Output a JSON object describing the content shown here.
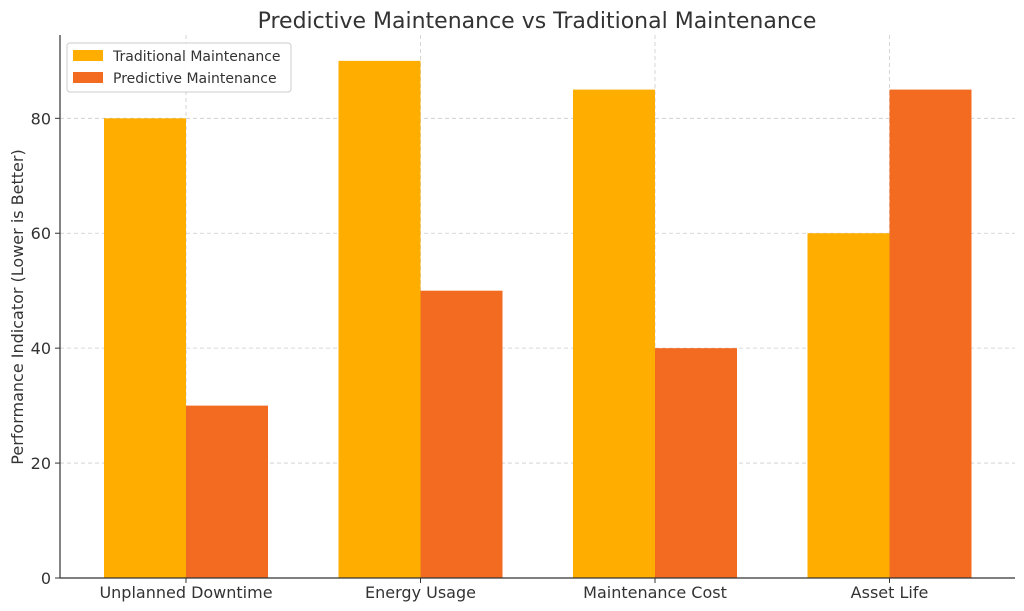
{
  "chart_data": {
    "type": "bar",
    "title": "Predictive Maintenance vs Traditional Maintenance",
    "xlabel": "",
    "ylabel": "Performance Indicator (Lower is Better)",
    "categories": [
      "Unplanned Downtime",
      "Energy Usage",
      "Maintenance Cost",
      "Asset Life"
    ],
    "series": [
      {
        "name": "Traditional Maintenance",
        "values": [
          80,
          90,
          85,
          60
        ],
        "color": "#FFAE00"
      },
      {
        "name": "Predictive Maintenance",
        "values": [
          30,
          50,
          40,
          85
        ],
        "color": "#F26B21"
      }
    ],
    "ylim": [
      0,
      94.5
    ],
    "yticks": [
      0,
      20,
      40,
      60,
      80
    ],
    "grid": true,
    "legend_position": "top-left"
  }
}
